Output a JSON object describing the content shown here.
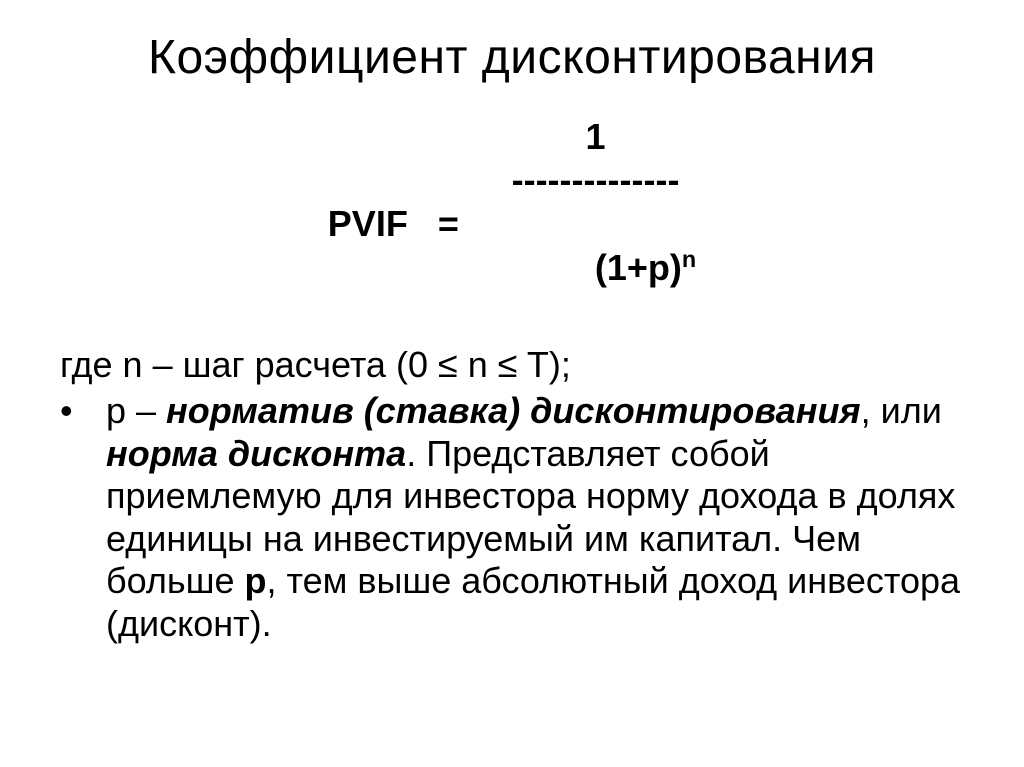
{
  "title": "Коэффициент дисконтирования",
  "formula": {
    "left": "PVIF   =",
    "numerator": "1",
    "dashes": "--------------",
    "denom_base": "(1+р)",
    "denom_exp": "n"
  },
  "where": {
    "prefix": "где n – шаг расчета (0 ≤ n ≤ T);"
  },
  "bullet": {
    "marker": "•",
    "seg1": "р – ",
    "seg2_bi": "норматив (ставка) дисконтирования",
    "seg3": ", или ",
    "seg4_bi": "норма дисконта",
    "seg5": ". Представляет собой приемлемую для инвестора норму дохода в долях единицы на инвестируемый им капитал. Чем больше ",
    "seg6_b": "р",
    "seg7": ", тем выше абсолютный доход инвестора (дисконт)."
  }
}
